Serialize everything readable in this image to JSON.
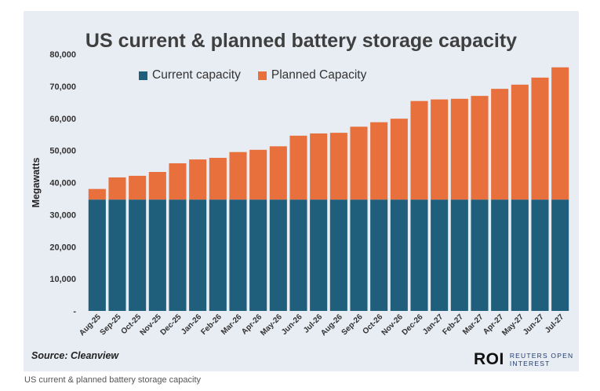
{
  "chart_data": {
    "type": "bar",
    "stacked": true,
    "title": "US current & planned battery storage capacity",
    "ylabel": "Megawatts",
    "xlabel": "",
    "ylim": [
      0,
      80000
    ],
    "yticks": [
      0,
      10000,
      20000,
      30000,
      40000,
      50000,
      60000,
      70000,
      80000
    ],
    "ytick_labels": [
      "-",
      "10,000",
      "20,000",
      "30,000",
      "40,000",
      "50,000",
      "60,000",
      "70,000",
      "80,000"
    ],
    "categories": [
      "Aug-25",
      "Sep-25",
      "Oct-25",
      "Nov-25",
      "Dec-25",
      "Jan-26",
      "Feb-26",
      "Mar-26",
      "Apr-26",
      "May-26",
      "Jun-26",
      "Jul-26",
      "Aug-26",
      "Sep-26",
      "Oct-26",
      "Nov-26",
      "Dec-26",
      "Jan-27",
      "Feb-27",
      "Mar-27",
      "Apr-27",
      "May-27",
      "Jun-27",
      "Jul-27"
    ],
    "series": [
      {
        "name": "Current capacity",
        "color": "#1f5f7c",
        "values": [
          34700,
          34700,
          34700,
          34700,
          34700,
          34700,
          34700,
          34700,
          34700,
          34700,
          34700,
          34700,
          34700,
          34700,
          34700,
          34700,
          34700,
          34700,
          34700,
          34700,
          34700,
          34700,
          34700,
          34700
        ]
      },
      {
        "name": "Planned Capacity",
        "color": "#e7703c",
        "values": [
          3300,
          6900,
          7400,
          8600,
          11300,
          12500,
          13000,
          14800,
          15500,
          16600,
          19900,
          20600,
          20800,
          22700,
          24100,
          25200,
          30700,
          31200,
          31400,
          32300,
          34500,
          35800,
          38000,
          41200
        ]
      }
    ],
    "legend_position": "top-left",
    "grid": false
  },
  "source": "Source: Cleanview",
  "brand": {
    "mark": "ROI",
    "line1": "REUTERS OPEN",
    "line2": "INTEREST"
  },
  "caption": "US current & planned battery storage capacity",
  "colors": {
    "background": "#e8ecf3",
    "current": "#1f5f7c",
    "planned": "#e7703c"
  }
}
